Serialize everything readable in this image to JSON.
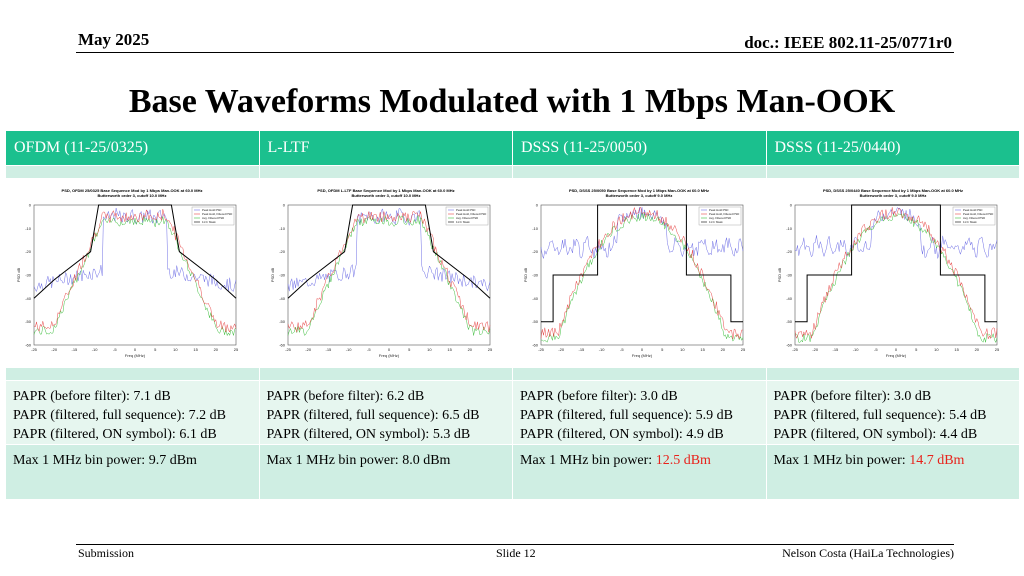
{
  "header": {
    "date": "May 2025",
    "doc": "doc.: IEEE 802.11-25/0771r0"
  },
  "title": "Base Waveforms Modulated with 1 Mbps Man-OOK",
  "columns": [
    {
      "heading": "OFDM (11-25/0325)",
      "plot_title_1": "PSD, OFDM 25/0325 Base Sequence Mod by 1 Mbps Man-OOK at 60.0 MHz",
      "plot_title_2": "Butterworth order 3, cutoff 10.0 MHz",
      "papr_before": "PAPR (before filter): 7.1 dB",
      "papr_full": "PAPR (filtered, full sequence): 7.2 dB",
      "papr_on": "PAPR (filtered, ON symbol): 6.1 dB",
      "max_label": "Max 1 MHz bin power: ",
      "max_value": "9.7 dBm",
      "max_highlight": false,
      "mask": "ofdm"
    },
    {
      "heading": "L-LTF",
      "plot_title_1": "PSD, OFDM L-LTF Base Sequence Mod by 1 Mbps Man-OOK at 60.0 MHz",
      "plot_title_2": "Butterworth order 3, cutoff 10.0 MHz",
      "papr_before": "PAPR (before filter): 6.2 dB",
      "papr_full": "PAPR (filtered, full sequence): 6.5 dB",
      "papr_on": "PAPR (filtered, ON symbol): 5.3 dB",
      "max_label": "Max 1 MHz bin power: ",
      "max_value": "8.0 dBm",
      "max_highlight": false,
      "mask": "ofdm"
    },
    {
      "heading": "DSSS (11-25/0050)",
      "plot_title_1": "PSD, DSSS 25/0050 Base Sequence Mod by 1 Mbps Man-OOK at 60.0 MHz",
      "plot_title_2": "Butterworth order 3, cutoff 9.0 MHz",
      "papr_before": "PAPR (before filter): 3.0 dB",
      "papr_full": "PAPR (filtered, full sequence): 5.9 dB",
      "papr_on": "PAPR (filtered, ON symbol): 4.9 dB",
      "max_label": "Max 1 MHz bin power: ",
      "max_value": "12.5 dBm",
      "max_highlight": true,
      "mask": "dsss"
    },
    {
      "heading": "DSSS (11-25/0440)",
      "plot_title_1": "PSD, DSSS 25/0440 Base Sequence Mod by 1 Mbps Man-OOK at 60.0 MHz",
      "plot_title_2": "Butterworth order 3, cutoff 9.0 MHz",
      "papr_before": "PAPR (before filter): 3.0 dB",
      "papr_full": "PAPR (filtered, full sequence): 5.4 dB",
      "papr_on": "PAPR (filtered, ON symbol): 4.4 dB",
      "max_label": "Max 1 MHz bin power: ",
      "max_value": "14.7 dBm",
      "max_highlight": true,
      "mask": "dsss"
    }
  ],
  "plot_common": {
    "xlabel": "Freq (MHz)",
    "ylabel": "PSD dB",
    "legend": [
      "Peak Hold PSD",
      "Peak Hold, Filtered PSD",
      "Avg. Filtered PSD",
      "11 hr Mask"
    ],
    "xticks": [
      "-25",
      "-20",
      "-15",
      "-10",
      "-5",
      "0",
      "5",
      "10",
      "15",
      "20",
      "25"
    ],
    "yticks": [
      "0",
      "-10",
      "-20",
      "-30",
      "-40",
      "-50",
      "-60"
    ],
    "colors": {
      "raw": "#6f6fe6",
      "filtered": "#e84848",
      "avg": "#3fbf3f",
      "mask": "#000000"
    }
  },
  "footer": {
    "left": "Submission",
    "center": "Slide 12",
    "right": "Nelson Costa (HaiLa Technologies)"
  }
}
